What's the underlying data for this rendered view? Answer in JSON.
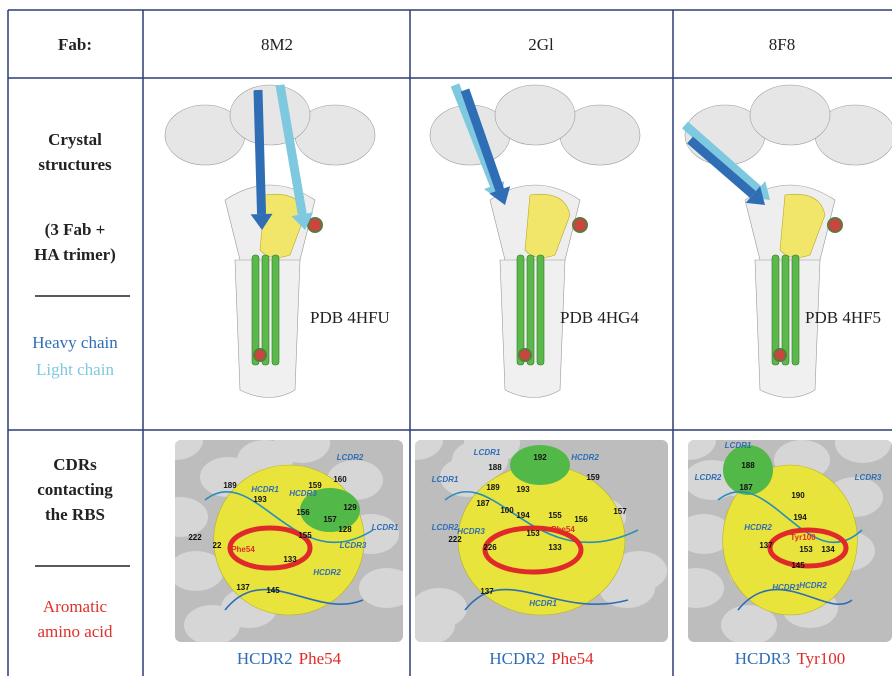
{
  "table": {
    "header": [
      "Fab:",
      "8M2",
      "2Gl",
      "8F8"
    ],
    "rows": [
      {
        "label": {
          "title_lines": [
            "Crystal",
            "structures"
          ],
          "subtitle_lines": [
            "(3 Fab +",
            "HA trimer)"
          ],
          "legend": [
            "Heavy chain",
            "Light chain"
          ]
        },
        "cells": [
          {
            "pdb": "PDB 4HFU"
          },
          {
            "pdb": "PDB 4HG4"
          },
          {
            "pdb": "PDB 4HF5"
          }
        ]
      },
      {
        "label": {
          "title_lines": [
            "CDRs",
            "contacting",
            "the RBS"
          ],
          "legend_lines": [
            "Aromatic",
            "amino acid"
          ]
        },
        "cells": [
          {
            "caption_loop": "HCDR2",
            "caption_residue": "Phe54",
            "labels": [
              "LCDR2",
              "189",
              "HCDR1",
              "193",
              "HCDR3",
              "159",
              "160",
              "156",
              "129",
              "157",
              "LCDR1",
              "128",
              "222",
              "155",
              "22",
              "Phe54",
              "133",
              "LCDR3",
              "HCDR2",
              "137",
              "145"
            ]
          },
          {
            "caption_loop": "HCDR2",
            "caption_residue": "Phe54",
            "labels": [
              "LCDR1",
              "192",
              "188",
              "HCDR2",
              "LCDR1",
              "189",
              "159",
              "193",
              "187",
              "100",
              "LCDR2",
              "HCDR3",
              "194",
              "155",
              "156",
              "157",
              "222",
              "153",
              "Phe54",
              "133",
              "226",
              "137",
              "HCDR1"
            ]
          },
          {
            "caption_loop": "HCDR3",
            "caption_residue": "Tyr100",
            "labels": [
              "LCDR1",
              "LCDR2",
              "188",
              "LCDR3",
              "187",
              "190",
              "194",
              "HCDR2",
              "Tyr100",
              "153",
              "137",
              "134",
              "145",
              "HCDR2",
              "HCDR1"
            ]
          }
        ]
      }
    ]
  }
}
